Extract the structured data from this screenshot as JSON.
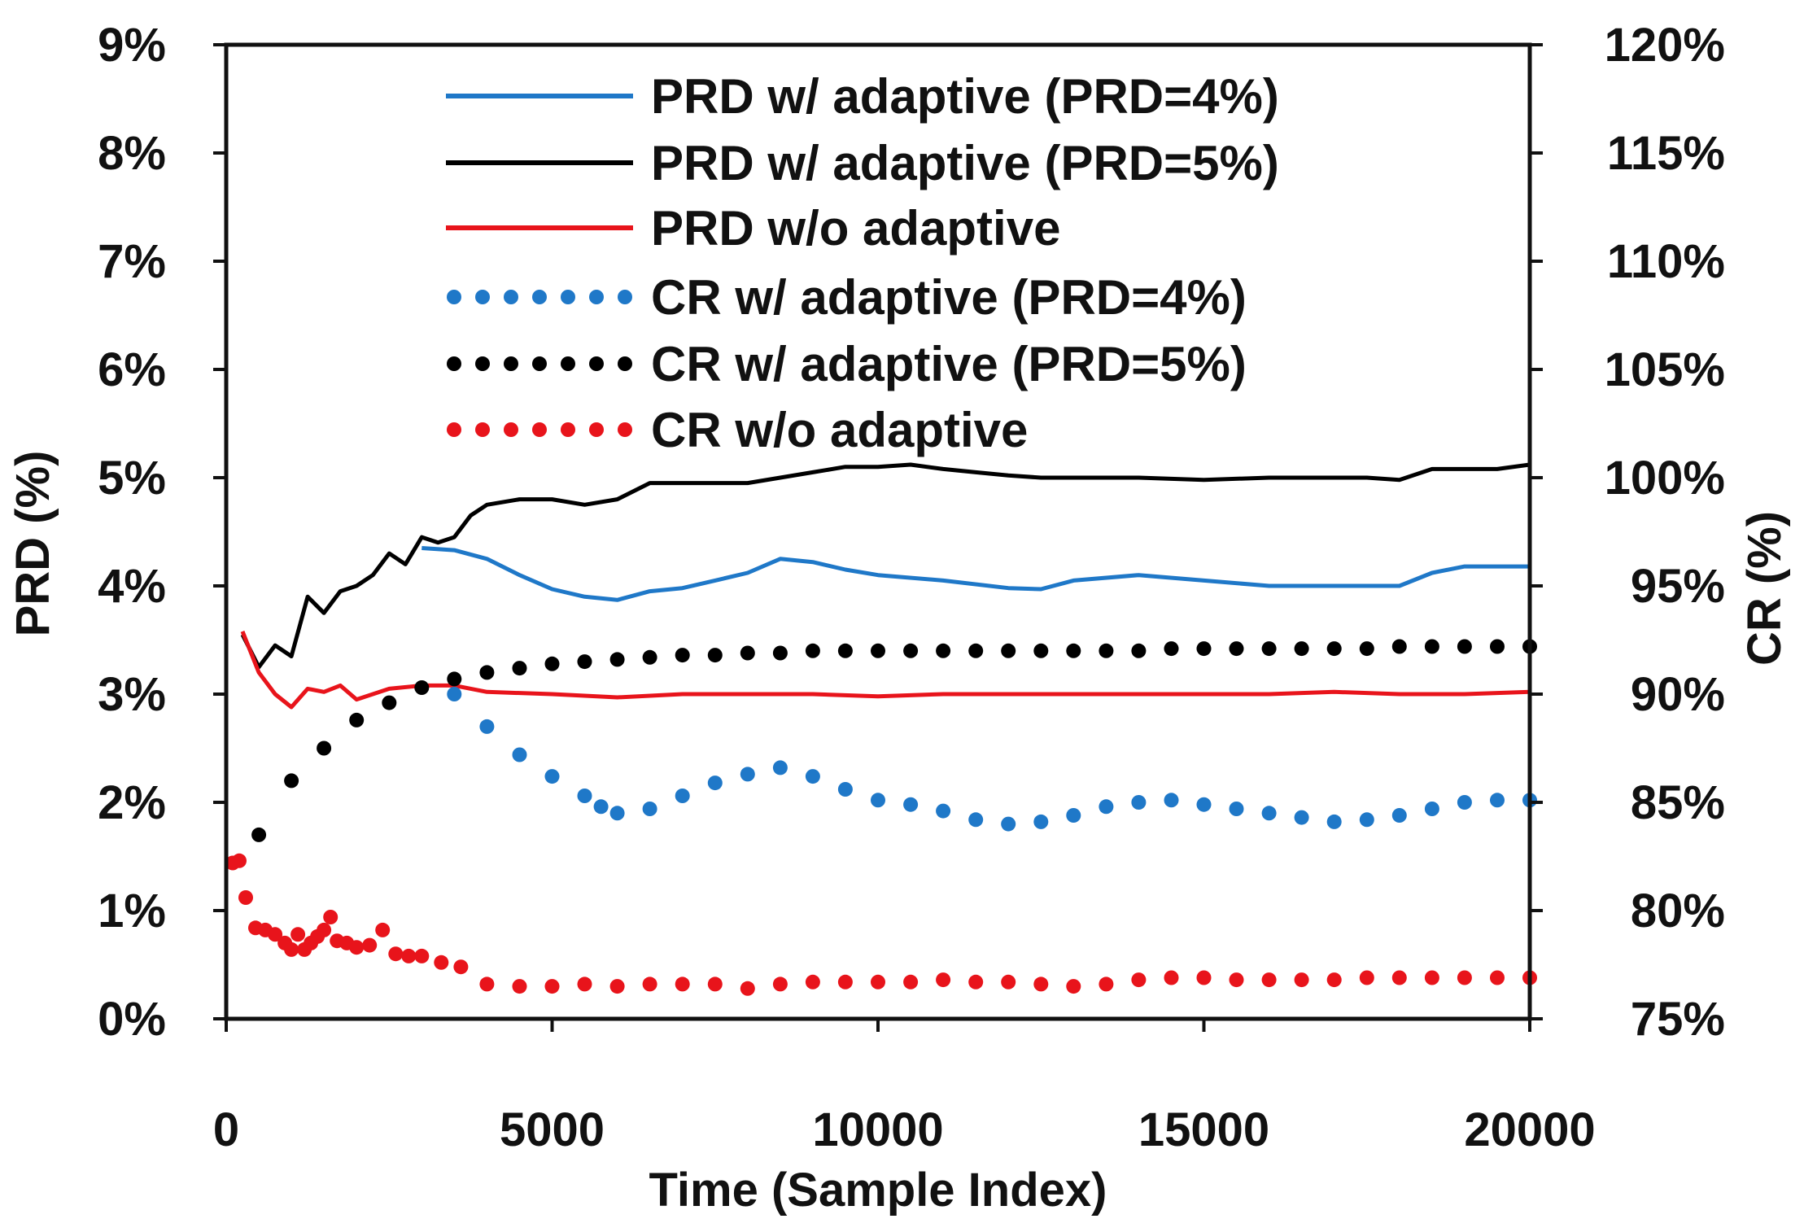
{
  "chart_data": {
    "type": "line",
    "title": "",
    "xlabel": "Time (Sample Index)",
    "ylabel": "PRD (%)",
    "y2label": "CR (%)",
    "xlim": [
      0,
      20000
    ],
    "ylim": [
      0,
      9
    ],
    "y2lim": [
      75,
      120
    ],
    "xticks": [
      0,
      5000,
      10000,
      15000,
      20000
    ],
    "yticks": [
      0,
      1,
      2,
      3,
      4,
      5,
      6,
      7,
      8,
      9
    ],
    "yticklabels": [
      "0%",
      "1%",
      "2%",
      "3%",
      "4%",
      "5%",
      "6%",
      "7%",
      "8%",
      "9%"
    ],
    "y2ticks": [
      75,
      80,
      85,
      90,
      95,
      100,
      105,
      110,
      115,
      120
    ],
    "y2ticklabels": [
      "75%",
      "80%",
      "85%",
      "90%",
      "95%",
      "100%",
      "105%",
      "110%",
      "115%",
      "120%"
    ],
    "grid": false,
    "legend_position": "top-center",
    "colors": {
      "blue": "#1f78c8",
      "black": "#000000",
      "red": "#e8141b"
    },
    "series": [
      {
        "name": "PRD w/ adaptive (PRD=4%)",
        "axis": "left",
        "style": "solid",
        "color": "#1f78c8",
        "x": [
          3000,
          3500,
          4000,
          4500,
          5000,
          5500,
          6000,
          6500,
          7000,
          7500,
          8000,
          8500,
          9000,
          9500,
          10000,
          11000,
          12000,
          12500,
          13000,
          14000,
          15000,
          16000,
          17000,
          18000,
          18500,
          19000,
          20000
        ],
        "y": [
          4.35,
          4.33,
          4.25,
          4.1,
          3.97,
          3.9,
          3.87,
          3.95,
          3.98,
          4.05,
          4.12,
          4.25,
          4.22,
          4.15,
          4.1,
          4.05,
          3.98,
          3.97,
          4.05,
          4.1,
          4.05,
          4.0,
          4.0,
          4.0,
          4.12,
          4.18,
          4.18
        ]
      },
      {
        "name": "PRD w/ adaptive (PRD=5%)",
        "axis": "left",
        "style": "solid",
        "color": "#000000",
        "x": [
          250,
          500,
          750,
          1000,
          1250,
          1500,
          1750,
          2000,
          2250,
          2500,
          2750,
          3000,
          3250,
          3500,
          3750,
          4000,
          4500,
          5000,
          5500,
          6000,
          6500,
          7000,
          7500,
          8000,
          8500,
          9000,
          9500,
          10000,
          10500,
          11000,
          11500,
          12000,
          12500,
          13000,
          14000,
          15000,
          16000,
          17000,
          17500,
          18000,
          18500,
          19000,
          19500,
          20000
        ],
        "y": [
          3.55,
          3.25,
          3.45,
          3.35,
          3.9,
          3.75,
          3.95,
          4.0,
          4.1,
          4.3,
          4.2,
          4.45,
          4.4,
          4.45,
          4.65,
          4.75,
          4.8,
          4.8,
          4.75,
          4.8,
          4.95,
          4.95,
          4.95,
          4.95,
          5.0,
          5.05,
          5.1,
          5.1,
          5.12,
          5.08,
          5.05,
          5.02,
          5.0,
          5.0,
          5.0,
          4.98,
          5.0,
          5.0,
          5.0,
          4.98,
          5.08,
          5.08,
          5.08,
          5.12
        ]
      },
      {
        "name": "PRD w/o adaptive",
        "axis": "left",
        "style": "solid",
        "color": "#e8141b",
        "x": [
          250,
          500,
          750,
          1000,
          1250,
          1500,
          1750,
          2000,
          2500,
          3000,
          3500,
          4000,
          5000,
          6000,
          7000,
          8000,
          9000,
          10000,
          11000,
          12000,
          13000,
          14000,
          15000,
          16000,
          17000,
          18000,
          19000,
          20000
        ],
        "y": [
          3.58,
          3.2,
          3.0,
          2.88,
          3.05,
          3.02,
          3.08,
          2.95,
          3.05,
          3.08,
          3.08,
          3.02,
          3.0,
          2.97,
          3.0,
          3.0,
          3.0,
          2.98,
          3.0,
          3.0,
          3.0,
          3.0,
          3.0,
          3.0,
          3.02,
          3.0,
          3.0,
          3.02
        ]
      },
      {
        "name": "CR w/ adaptive (PRD=4%)",
        "axis": "right",
        "style": "dotted",
        "color": "#1f78c8",
        "x": [
          3500,
          4000,
          4500,
          5000,
          5500,
          5750,
          6000,
          6500,
          7000,
          7500,
          8000,
          8500,
          9000,
          9500,
          10000,
          10500,
          11000,
          11500,
          12000,
          12500,
          13000,
          13500,
          14000,
          14500,
          15000,
          15500,
          16000,
          16500,
          17000,
          17500,
          18000,
          18500,
          19000,
          19500,
          20000
        ],
        "y": [
          90.0,
          88.5,
          87.2,
          86.2,
          85.3,
          84.8,
          84.5,
          84.7,
          85.3,
          85.9,
          86.3,
          86.6,
          86.2,
          85.6,
          85.1,
          84.9,
          84.6,
          84.2,
          84.0,
          84.1,
          84.4,
          84.8,
          85.0,
          85.1,
          84.9,
          84.7,
          84.5,
          84.3,
          84.1,
          84.2,
          84.4,
          84.7,
          85.0,
          85.1,
          85.1
        ]
      },
      {
        "name": "CR w/ adaptive (PRD=5%)",
        "axis": "right",
        "style": "dotted",
        "color": "#000000",
        "x": [
          500,
          1000,
          1500,
          2000,
          2500,
          3000,
          3500,
          4000,
          4500,
          5000,
          5500,
          6000,
          6500,
          7000,
          7500,
          8000,
          8500,
          9000,
          9500,
          10000,
          10500,
          11000,
          11500,
          12000,
          12500,
          13000,
          13500,
          14000,
          14500,
          15000,
          15500,
          16000,
          16500,
          17000,
          17500,
          18000,
          18500,
          19000,
          19500,
          20000
        ],
        "y": [
          83.5,
          86.0,
          87.5,
          88.8,
          89.6,
          90.3,
          90.7,
          91.0,
          91.2,
          91.4,
          91.5,
          91.6,
          91.7,
          91.8,
          91.8,
          91.9,
          91.9,
          92.0,
          92.0,
          92.0,
          92.0,
          92.0,
          92.0,
          92.0,
          92.0,
          92.0,
          92.0,
          92.0,
          92.1,
          92.1,
          92.1,
          92.1,
          92.1,
          92.1,
          92.1,
          92.2,
          92.2,
          92.2,
          92.2,
          92.2
        ]
      },
      {
        "name": "CR w/o adaptive",
        "axis": "right",
        "style": "dotted",
        "color": "#e8141b",
        "x": [
          100,
          200,
          300,
          450,
          600,
          750,
          900,
          1000,
          1100,
          1200,
          1300,
          1400,
          1500,
          1600,
          1700,
          1850,
          2000,
          2200,
          2400,
          2600,
          2800,
          3000,
          3300,
          3600,
          4000,
          4500,
          5000,
          5500,
          6000,
          6500,
          7000,
          7500,
          8000,
          8500,
          9000,
          9500,
          10000,
          10500,
          11000,
          11500,
          12000,
          12500,
          13000,
          13500,
          14000,
          14500,
          15000,
          15500,
          16000,
          16500,
          17000,
          17500,
          18000,
          18500,
          19000,
          19500,
          20000
        ],
        "y": [
          82.2,
          82.3,
          80.6,
          79.2,
          79.1,
          78.9,
          78.5,
          78.2,
          78.9,
          78.2,
          78.5,
          78.8,
          79.1,
          79.7,
          78.6,
          78.5,
          78.3,
          78.4,
          79.1,
          78.0,
          77.9,
          77.9,
          77.6,
          77.4,
          76.6,
          76.5,
          76.5,
          76.6,
          76.5,
          76.6,
          76.6,
          76.6,
          76.4,
          76.6,
          76.7,
          76.7,
          76.7,
          76.7,
          76.8,
          76.7,
          76.7,
          76.6,
          76.5,
          76.6,
          76.8,
          76.9,
          76.9,
          76.8,
          76.8,
          76.8,
          76.8,
          76.9,
          76.9,
          76.9,
          76.9,
          76.9,
          76.9
        ]
      }
    ]
  }
}
